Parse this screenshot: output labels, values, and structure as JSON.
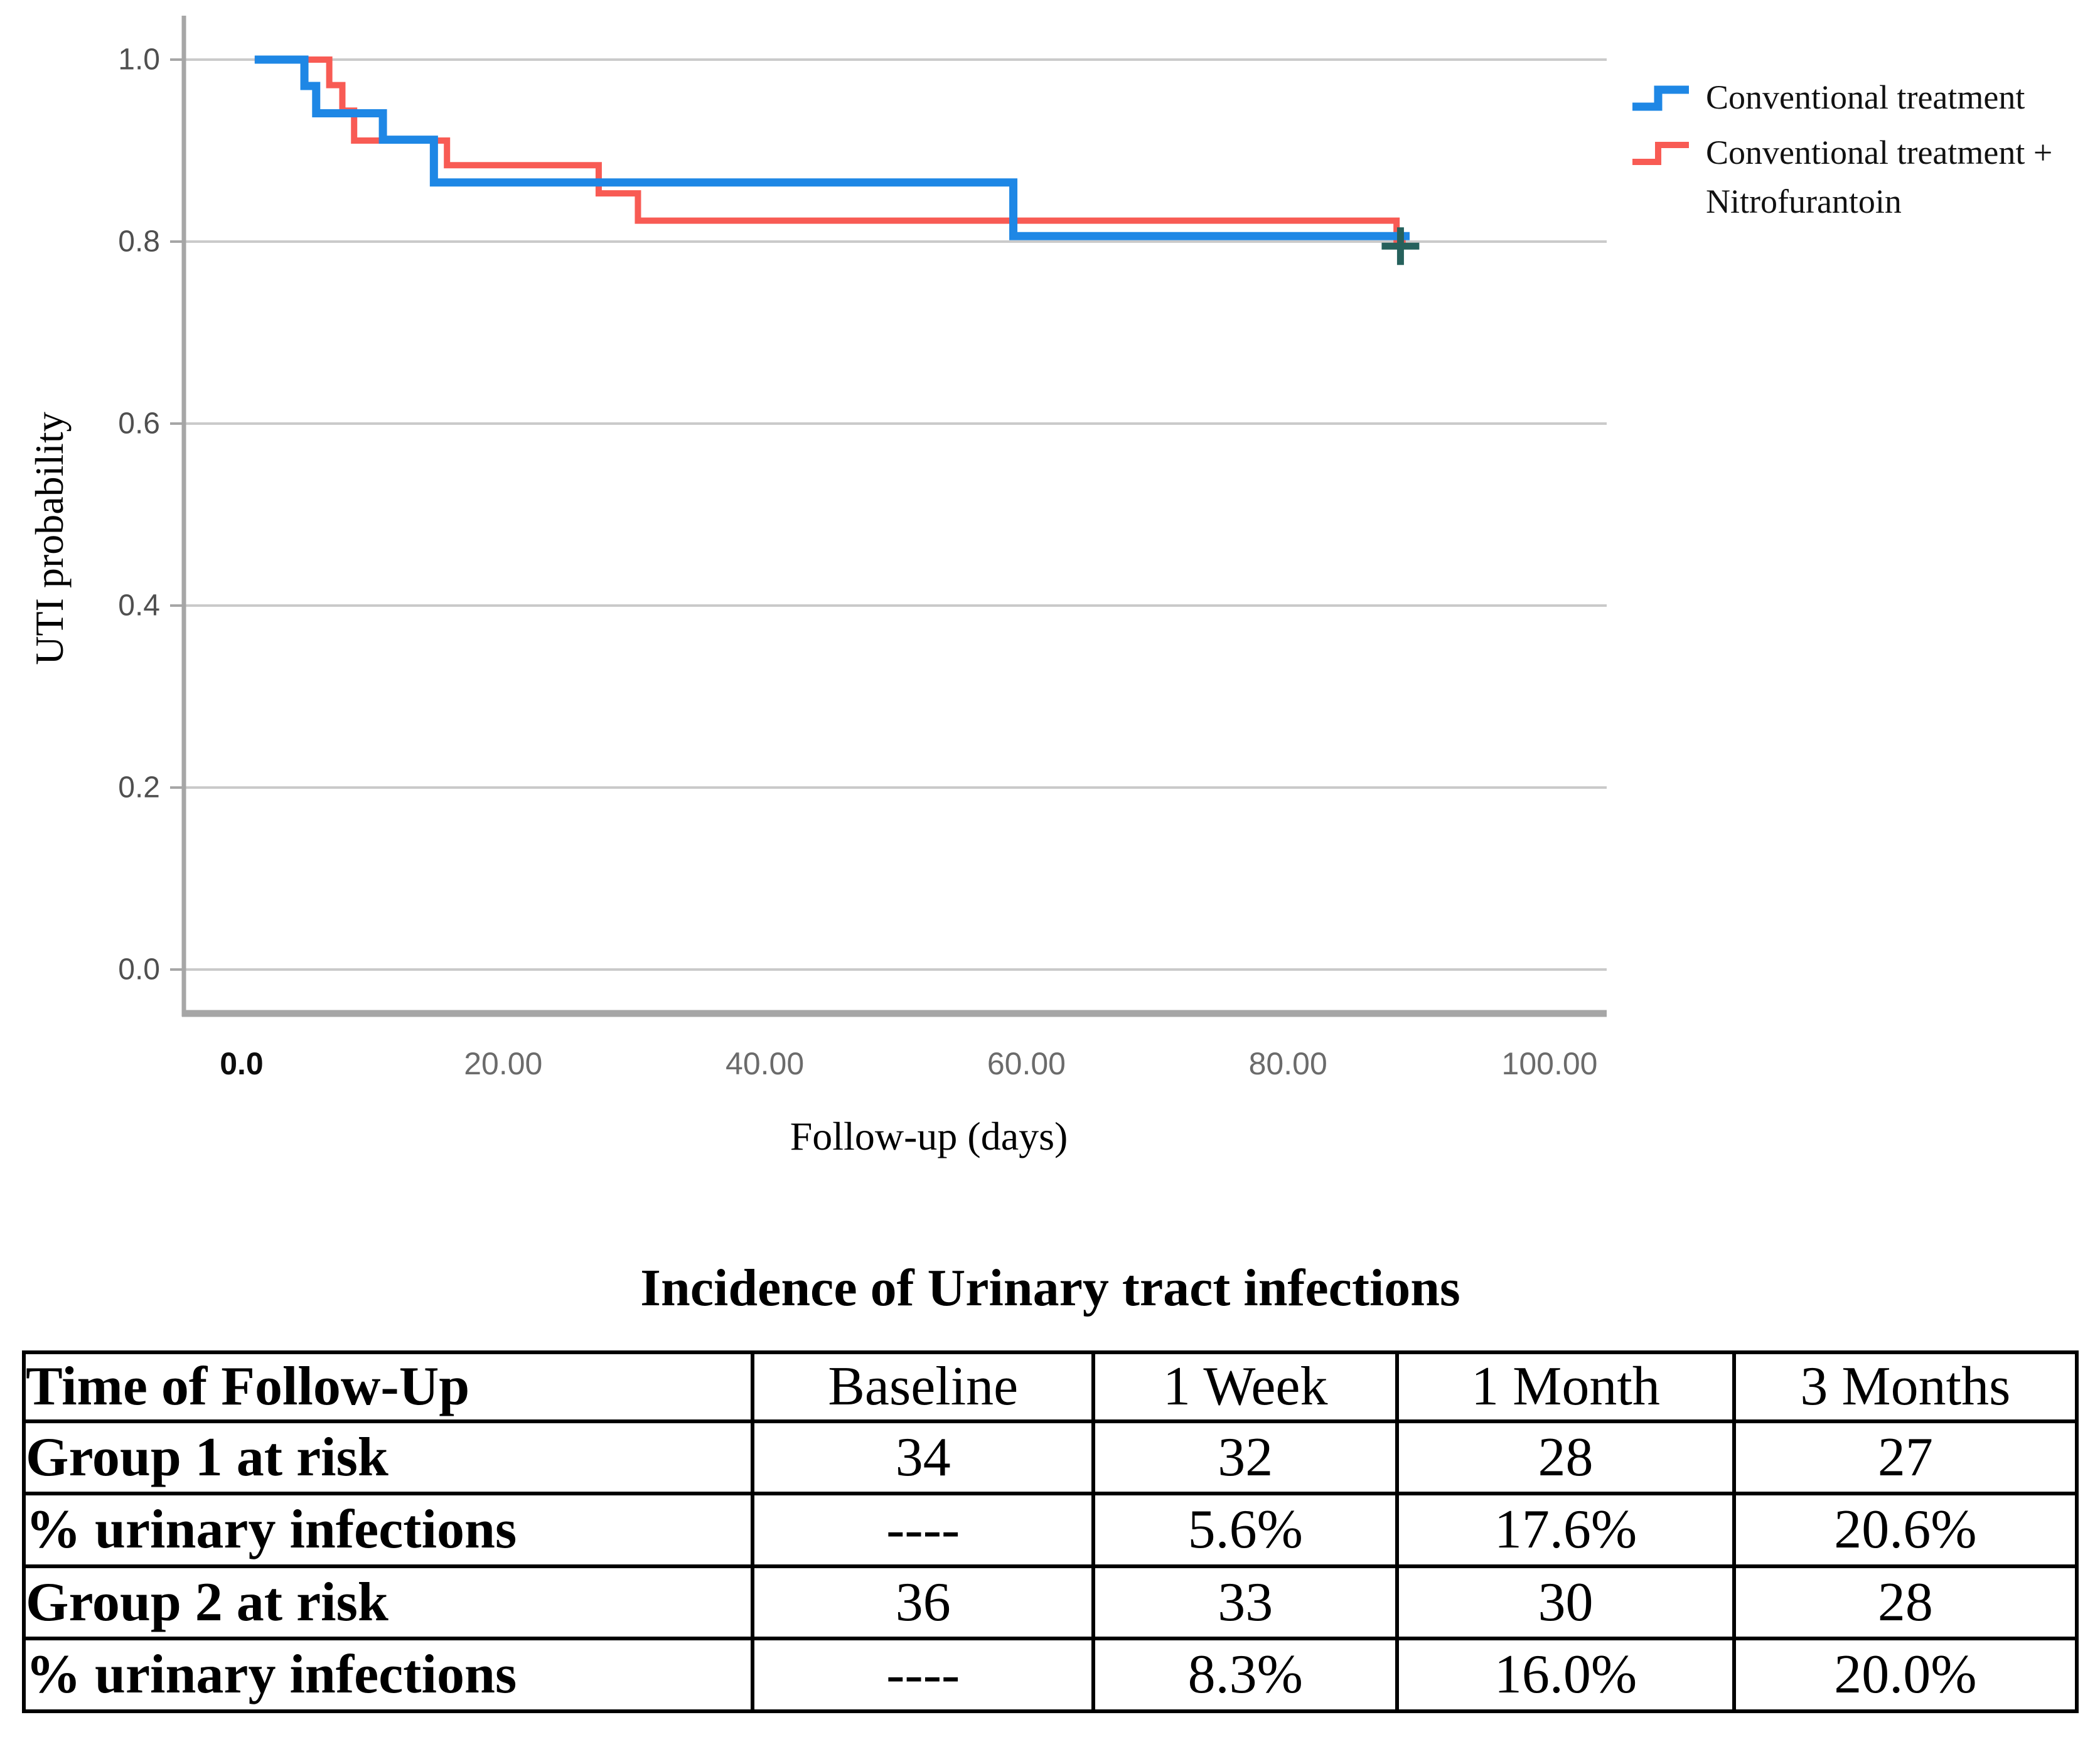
{
  "chart_data": {
    "type": "line",
    "subtype": "kaplan-meier-step-survival",
    "title": "",
    "xlabel": "Follow-up (days)",
    "ylabel": "UTI probability",
    "xlim": [
      0,
      104
    ],
    "ylim": [
      0,
      1.0
    ],
    "grid": "horizontal-only",
    "legend_position": "outside-top-right",
    "x_ticks": [
      {
        "label": "0.0",
        "value": 0,
        "emphasis": true
      },
      {
        "label": "20.00",
        "value": 20
      },
      {
        "label": "40.00",
        "value": 40
      },
      {
        "label": "60.00",
        "value": 60
      },
      {
        "label": "80.00",
        "value": 80
      },
      {
        "label": "100.00",
        "value": 100
      }
    ],
    "y_ticks": [
      {
        "label": "1.0",
        "value": 1.0
      },
      {
        "label": "0.8",
        "value": 0.8
      },
      {
        "label": "0.6",
        "value": 0.6
      },
      {
        "label": "0.4",
        "value": 0.4
      },
      {
        "label": "0.2",
        "value": 0.2
      },
      {
        "label": "0.0",
        "value": 0.0
      }
    ],
    "series": [
      {
        "name": "Conventional treatment",
        "color": "#1E87E5",
        "stroke_width": 13,
        "start": [
          1,
          1.0
        ],
        "steps": [
          [
            4.8,
            0.971
          ],
          [
            5.7,
            0.941
          ],
          [
            10.8,
            0.912
          ],
          [
            14.7,
            0.865
          ],
          [
            59,
            0.806
          ]
        ],
        "end_day": 89.3
      },
      {
        "name": "Conventional treatment + Nitrofurantoin",
        "color": "#F85B54",
        "stroke_width": 10,
        "start": [
          1,
          1.0
        ],
        "steps": [
          [
            6.7,
            0.972
          ],
          [
            7.7,
            0.944
          ],
          [
            8.6,
            0.911
          ],
          [
            15.7,
            0.884
          ],
          [
            27.3,
            0.853
          ],
          [
            30.3,
            0.823
          ],
          [
            88.3,
            0.8
          ]
        ],
        "end_day": 89.0
      }
    ],
    "censor_marks": [
      {
        "day": 88.6,
        "probability": 0.795,
        "color": "#26615C"
      }
    ]
  },
  "legend": {
    "items": [
      {
        "label": "Conventional treatment",
        "color": "#1E87E5"
      },
      {
        "label": "Conventional treatment + Nitrofurantoin",
        "color": "#F85B54"
      }
    ]
  },
  "table": {
    "title": "Incidence of Urinary tract infections",
    "columns": [
      "Time of Follow-Up",
      "Baseline",
      "1 Week",
      "1 Month",
      "3 Months"
    ],
    "rows": [
      {
        "label": "Group 1 at risk",
        "values": [
          "34",
          "32",
          "28",
          "27"
        ]
      },
      {
        "label": "% urinary infections",
        "values": [
          "----",
          "5.6%",
          "17.6%",
          "20.6%"
        ]
      },
      {
        "label": "Group 2 at risk",
        "values": [
          "36",
          "33",
          "30",
          "28"
        ]
      },
      {
        "label": "% urinary infections",
        "values": [
          "----",
          "8.3%",
          "16.0%",
          "20.0%"
        ]
      }
    ]
  },
  "colors": {
    "grid": "#CACACA",
    "axis": "#A6A6A6"
  }
}
